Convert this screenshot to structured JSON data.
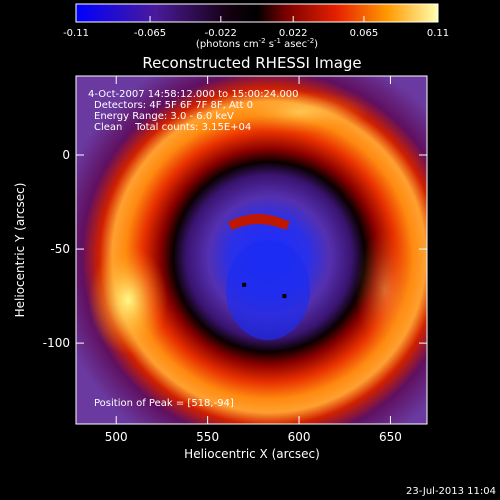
{
  "chart_data": {
    "type": "heatmap",
    "title": "Reconstructed RHESSI Image",
    "colorbar": {
      "ticks": [
        "-0.11",
        "-0.065",
        "-0.022",
        "0.022",
        "0.065",
        "0.11"
      ],
      "range": [
        -0.11,
        0.11
      ],
      "unit_label": "(photons cm",
      "unit_exp1": "-2",
      "unit_mid": " s",
      "unit_exp2": "-1",
      "unit_tail": " asec",
      "unit_exp3": "-2",
      "unit_end": ")"
    },
    "xlabel": "Heliocentric X (arcsec)",
    "ylabel": "Heliocentric Y (arcsec)",
    "xlim": [
      478,
      670
    ],
    "ylim": [
      -143,
      42
    ],
    "xticks": [
      "500",
      "550",
      "600",
      "650"
    ],
    "yticks": [
      "0",
      "-50",
      "-100"
    ],
    "annotations": [
      "4-Oct-2007 14:58:12.000 to 15:00:24.000",
      "Detectors: 4F 5F 6F 7F 8F, Att 0",
      "Energy Range: 3.0 - 6.0 keV",
      "Clean    Total counts: 3.15E+04"
    ],
    "peak_label": "Position of Peak = [518,-94]",
    "markers": [
      {
        "x": 570,
        "y": -69
      },
      {
        "x": 592,
        "y": -75
      }
    ],
    "ring_center": [
      578,
      -60
    ],
    "colors": {
      "low": "#0a0aff",
      "mid": "#000000",
      "high": "#ffff80"
    }
  },
  "footer": {
    "timestamp": "23-Jul-2013 11:04"
  }
}
